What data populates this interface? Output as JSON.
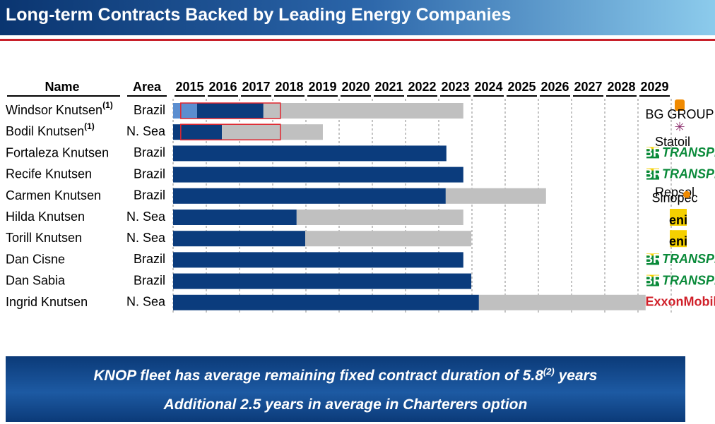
{
  "header": {
    "title": "Long-term Contracts Backed by Leading Energy Companies"
  },
  "table": {
    "name_header": "Name",
    "area_header": "Area",
    "xlim": [
      2015,
      2030
    ],
    "years": [
      2015,
      2016,
      2017,
      2018,
      2019,
      2020,
      2021,
      2022,
      2023,
      2024,
      2025,
      2026,
      2027,
      2028,
      2029
    ],
    "colors": {
      "delivered": "#5b8ed0",
      "fixed": "#0b3c7d",
      "option": "#c0c0c0",
      "highlight": "#e0262f"
    },
    "rows": [
      {
        "name": "Windsor Knutsen",
        "note": "(1)",
        "area": "Brazil",
        "segments": [
          {
            "kind": "delivered",
            "start": 2015,
            "end": 2015.72
          },
          {
            "kind": "fixed",
            "start": 2015.72,
            "end": 2017.72
          },
          {
            "kind": "option",
            "start": 2017.72,
            "end": 2023.74
          }
        ],
        "highlight": [
          2015.23,
          2018.23
        ],
        "charterer": [
          "BG GROUP"
        ]
      },
      {
        "name": "Bodil Knutsen",
        "note": "(1)",
        "area": "N. Sea",
        "segments": [
          {
            "kind": "fixed",
            "start": 2015,
            "end": 2016.47
          },
          {
            "kind": "option",
            "start": 2016.47,
            "end": 2019.51
          }
        ],
        "highlight": [
          2015.23,
          2018.23
        ],
        "charterer": [
          "Statoil"
        ]
      },
      {
        "name": "Fortaleza Knutsen",
        "area": "Brazil",
        "segments": [
          {
            "kind": "fixed",
            "start": 2015,
            "end": 2023.23
          }
        ],
        "charterer": [
          "BR",
          "TRANSPETRO"
        ]
      },
      {
        "name": "Recife Knutsen",
        "area": "Brazil",
        "segments": [
          {
            "kind": "fixed",
            "start": 2015,
            "end": 2023.74
          }
        ],
        "charterer": [
          "BR",
          "TRANSPETRO"
        ]
      },
      {
        "name": "Carmen Knutsen",
        "area": "Brazil",
        "segments": [
          {
            "kind": "fixed",
            "start": 2015,
            "end": 2023.21
          },
          {
            "kind": "option",
            "start": 2023.21,
            "end": 2026.23
          }
        ],
        "charterer": [
          "Repsol",
          "Sinopec"
        ]
      },
      {
        "name": "Hilda Knutsen",
        "area": "N. Sea",
        "segments": [
          {
            "kind": "fixed",
            "start": 2015,
            "end": 2018.72
          },
          {
            "kind": "option",
            "start": 2018.72,
            "end": 2023.74
          }
        ],
        "charterer": [
          "eni"
        ]
      },
      {
        "name": "Torill Knutsen",
        "area": "N. Sea",
        "segments": [
          {
            "kind": "fixed",
            "start": 2015,
            "end": 2018.98
          },
          {
            "kind": "option",
            "start": 2018.98,
            "end": 2023.98
          }
        ],
        "charterer": [
          "eni"
        ]
      },
      {
        "name": "Dan Cisne",
        "area": "Brazil",
        "segments": [
          {
            "kind": "fixed",
            "start": 2015,
            "end": 2023.74
          }
        ],
        "charterer": [
          "BR",
          "TRANSPETRO"
        ]
      },
      {
        "name": "Dan Sabia",
        "area": "Brazil",
        "segments": [
          {
            "kind": "fixed",
            "start": 2015,
            "end": 2023.98
          }
        ],
        "charterer": [
          "BR",
          "TRANSPETRO"
        ]
      },
      {
        "name": "Ingrid Knutsen",
        "area": "N. Sea",
        "segments": [
          {
            "kind": "fixed",
            "start": 2015,
            "end": 2024.21
          },
          {
            "kind": "option",
            "start": 2024.21,
            "end": 2029.23
          }
        ],
        "charterer": [
          "ExxonMobil"
        ]
      }
    ]
  },
  "footer": {
    "line1": [
      "KNOP fleet has average remaining fixed contract duration of 5.8",
      "(2)",
      " years"
    ],
    "line2": "Additional 2.5 years in average in Charterers option"
  }
}
